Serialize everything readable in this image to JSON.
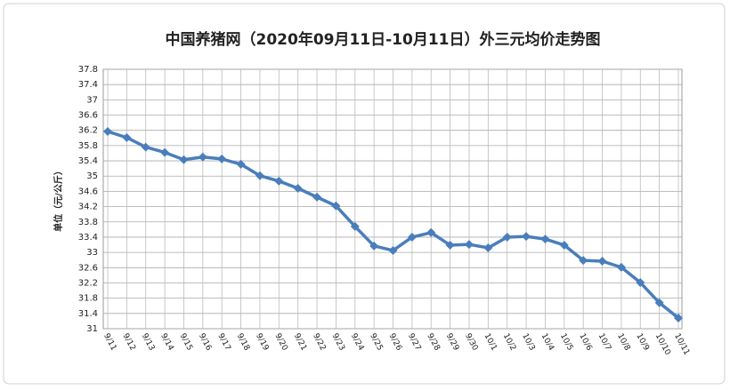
{
  "chart_data": {
    "type": "line",
    "title": "中国养猪网（2020年09月11日-10月11日）外三元均价走势图",
    "y_label": "单位（元/公斤）",
    "categories": [
      "9/11",
      "9/12",
      "9/13",
      "9/14",
      "9/15",
      "9/16",
      "9/17",
      "9/18",
      "9/19",
      "9/20",
      "9/21",
      "9/22",
      "9/23",
      "9/24",
      "9/25",
      "9/26",
      "9/27",
      "9/28",
      "9/29",
      "9/30",
      "10/1",
      "10/2",
      "10/3",
      "10/4",
      "10/5",
      "10/6",
      "10/7",
      "10/8",
      "10/9",
      "10/10",
      "10/11"
    ],
    "values": [
      36.17,
      36.01,
      35.76,
      35.62,
      35.43,
      35.5,
      35.45,
      35.31,
      35.01,
      34.87,
      34.68,
      34.45,
      34.22,
      33.68,
      33.17,
      33.05,
      33.4,
      33.52,
      33.19,
      33.21,
      33.12,
      33.4,
      33.42,
      33.35,
      33.19,
      32.79,
      32.77,
      32.61,
      32.21,
      31.68,
      31.28
    ],
    "color": "#4a7ebb",
    "ylim": [
      31,
      37.8
    ],
    "yticks": [
      31,
      31.4,
      31.8,
      32.2,
      32.6,
      33,
      33.4,
      33.8,
      34.2,
      34.6,
      35,
      35.4,
      35.8,
      36.2,
      36.6,
      37,
      37.4,
      37.8
    ],
    "grid": true
  }
}
